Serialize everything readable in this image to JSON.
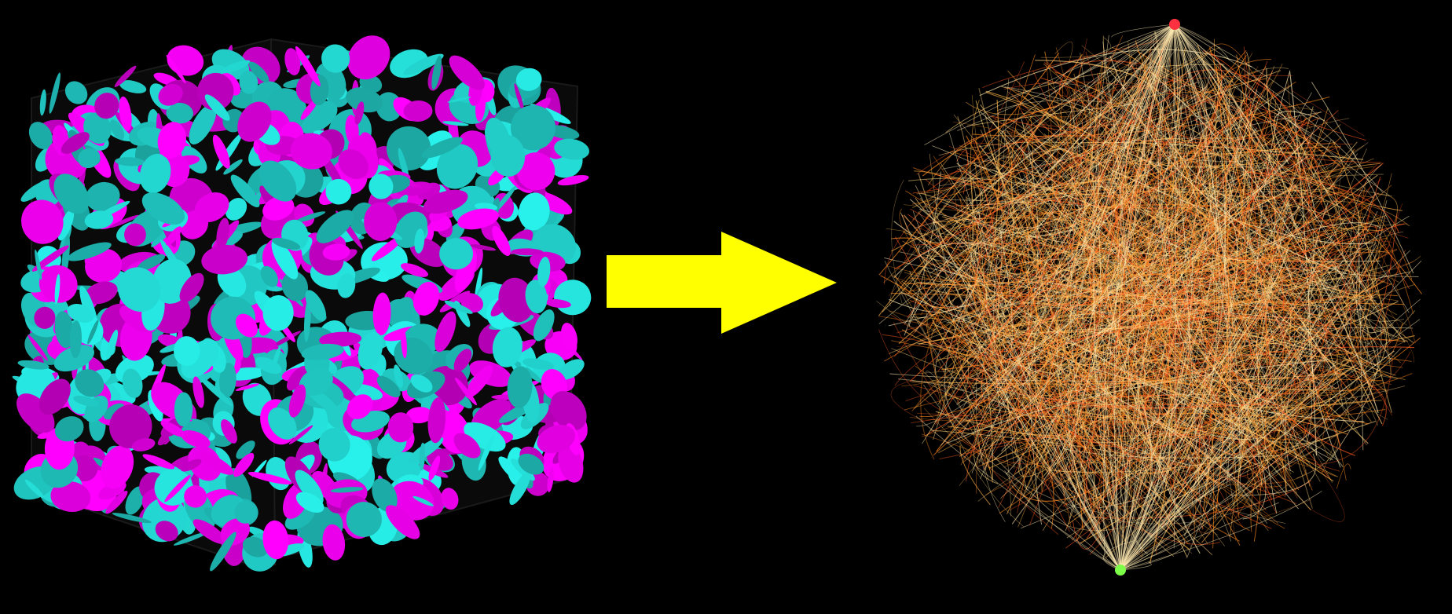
{
  "scene": {
    "background": "#000000",
    "left_panel": {
      "subject": "cube-of-packed-discs",
      "disc_colors": [
        "#ff00ff",
        "#26e6e0"
      ],
      "box_edge_color": "#1a1a1a"
    },
    "arrow": {
      "icon": "right-arrow-icon",
      "direction": "right",
      "color": "#ffff00"
    },
    "right_panel": {
      "subject": "network-graph",
      "edge_colors": [
        "#ffb347",
        "#ff8a1f",
        "#ff5a1f",
        "#ffd27a",
        "#ffe9b0"
      ],
      "top_node_color": "#ff3040",
      "bottom_node_color": "#7dff4a"
    }
  }
}
